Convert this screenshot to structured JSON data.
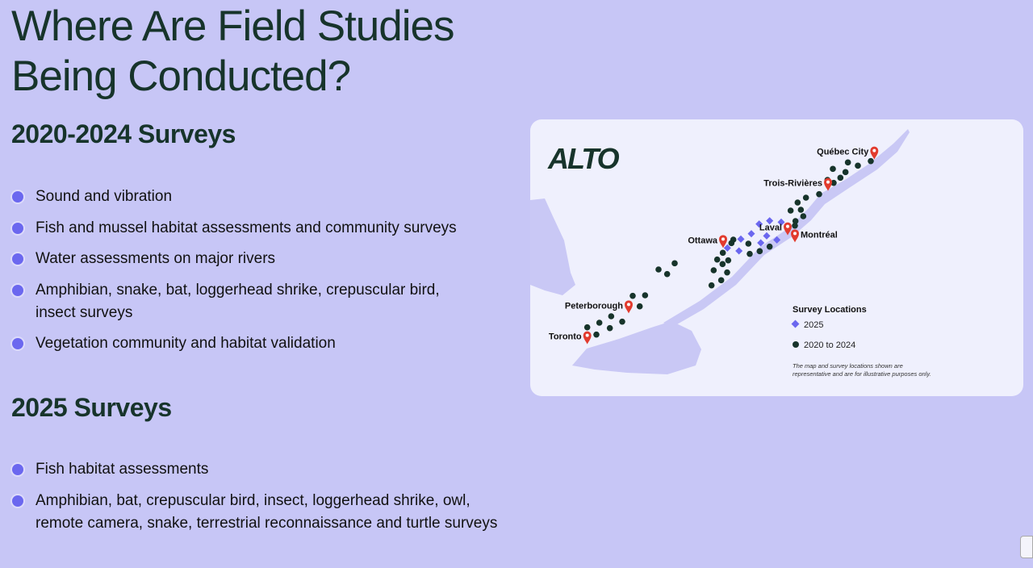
{
  "title_line1": "Where Are Field Studies",
  "title_line2": "Being Conducted?",
  "section1": {
    "heading": "2020-2024 Surveys",
    "items": [
      "Sound and vibration",
      "Fish and mussel habitat assessments and community surveys",
      "Water assessments on major rivers",
      "Amphibian, snake, bat, loggerhead shrike, crepuscular bird, insect surveys",
      "Vegetation community and habitat validation"
    ]
  },
  "section2": {
    "heading": "2025 Surveys",
    "items": [
      "Fish habitat assessments",
      "Amphibian, bat, crepuscular bird, insect, loggerhead shrike, owl, remote camera, snake, terrestrial reconnaissance and turtle surveys"
    ]
  },
  "map": {
    "logo": "ALTO",
    "cities": [
      "Québec City",
      "Trois-Rivières",
      "Laval",
      "Montréal",
      "Ottawa",
      "Peterborough",
      "Toronto"
    ],
    "legend": {
      "title": "Survey Locations",
      "item_2025": "2025",
      "item_2020_2024": "2020 to 2024"
    },
    "note_line1": "The map and survey locations shown are",
    "note_line2": "representative and are for illustrative purposes only.",
    "colors": {
      "pin": "#e23b2e",
      "dot_2020_2024": "#17342b",
      "diamond_2025": "#6b67ef",
      "water": "#c9c8f5"
    }
  }
}
